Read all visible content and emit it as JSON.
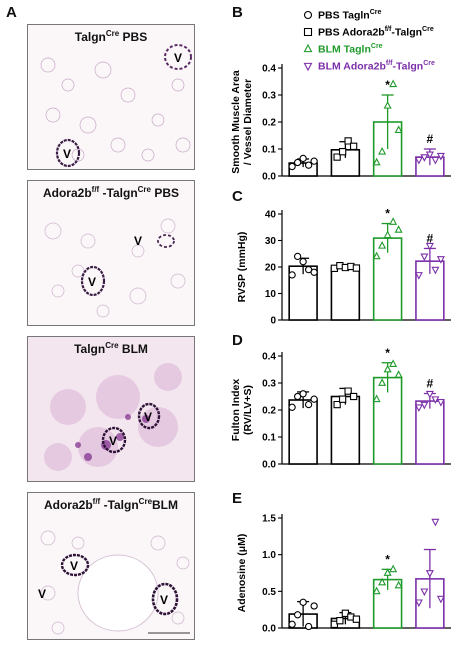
{
  "panels": {
    "A": "A",
    "B": "B",
    "C": "C",
    "D": "D",
    "E": "E"
  },
  "micrographs": [
    {
      "label_main": "Talgn",
      "label_sup": "Cre",
      "label_tail": " PBS",
      "vessels": [
        "V",
        "V"
      ]
    },
    {
      "label_main": "Adora2b",
      "label_sup": "f/f",
      "label_tail": " -Talgn",
      "label_sup2": "Cre",
      "label_tail2": " PBS",
      "vessels": [
        "V",
        "V"
      ]
    },
    {
      "label_main": "Talgn",
      "label_sup": "Cre",
      "label_tail": " BLM",
      "vessels": [
        "V",
        "V"
      ]
    },
    {
      "label_main": "Adora2b",
      "label_sup": "f/f",
      "label_tail": " -Talgn",
      "label_sup2": "Cre",
      "label_tail2": "BLM",
      "vessels": [
        "V",
        "V",
        "V"
      ]
    }
  ],
  "legend": [
    {
      "main": "PBS Tagln",
      "sup": "Cre",
      "main2": "",
      "sup2": "",
      "color": "#000000",
      "marker": "circle"
    },
    {
      "main": "PBS Adora2b",
      "sup": "f/f",
      "main2": "-Talgn",
      "sup2": "Cre",
      "color": "#000000",
      "marker": "square"
    },
    {
      "main": "BLM Tagln",
      "sup": "Cre",
      "main2": "",
      "sup2": "",
      "color": "#1e9a2a",
      "marker": "triangle-up"
    },
    {
      "main": "BLM Adora2b",
      "sup": "f/f",
      "main2": "-Talgn",
      "sup2": "Cre",
      "color": "#7b2fa8",
      "marker": "triangle-down"
    }
  ],
  "colors": {
    "group1": "#000000",
    "group2": "#000000",
    "group3": "#1e9a2a",
    "group4": "#7b2fa8"
  },
  "chart_data": [
    {
      "type": "bar",
      "panel": "B",
      "ylabel_lines": [
        "Smooth Muscle Area",
        "/ Vessel Diameter"
      ],
      "ylim": [
        0,
        0.4
      ],
      "yticks": [
        0.0,
        0.1,
        0.2,
        0.3,
        0.4
      ],
      "ytick_labels": [
        "0.0",
        "0.1",
        "0.2",
        "0.3",
        "0.4"
      ],
      "values": [
        0.048,
        0.097,
        0.2,
        0.07
      ],
      "errors": [
        0.015,
        0.03,
        0.1,
        0.03
      ],
      "points": [
        [
          0.035,
          0.05,
          0.065,
          0.04,
          0.055
        ],
        [
          0.07,
          0.09,
          0.13,
          0.11
        ],
        [
          0.05,
          0.09,
          0.26,
          0.34,
          0.17
        ],
        [
          0.06,
          0.07,
          0.08,
          0.06,
          0.075
        ]
      ],
      "annotations": [
        {
          "bar": 2,
          "text": "*"
        },
        {
          "bar": 3,
          "text": "#"
        }
      ]
    },
    {
      "type": "bar",
      "panel": "C",
      "ylabel_lines": [
        "RVSP (mmHg)"
      ],
      "ylim": [
        0,
        40
      ],
      "yticks": [
        0,
        10,
        20,
        30,
        40
      ],
      "ytick_labels": [
        "0",
        "10",
        "20",
        "30",
        "40"
      ],
      "values": [
        20.3,
        19.9,
        30.9,
        22.2
      ],
      "errors": [
        3.0,
        0.8,
        5.5,
        4.8
      ],
      "points": [
        [
          17,
          24,
          22,
          19,
          18
        ],
        [
          19.5,
          20.5,
          19.8,
          20.2,
          19.6
        ],
        [
          24,
          28,
          32,
          37,
          34
        ],
        [
          17,
          24,
          28,
          19,
          23
        ]
      ],
      "annotations": [
        {
          "bar": 2,
          "text": "*"
        },
        {
          "bar": 3,
          "text": "#"
        }
      ]
    },
    {
      "type": "bar",
      "panel": "D",
      "ylabel_lines": [
        "Fulton Index",
        "(RV/LV+S)"
      ],
      "ylim": [
        0,
        0.4
      ],
      "yticks": [
        0.0,
        0.1,
        0.2,
        0.3,
        0.4
      ],
      "ytick_labels": [
        "0.0",
        "0.1",
        "0.2",
        "0.3",
        "0.4"
      ],
      "values": [
        0.237,
        0.25,
        0.32,
        0.233
      ],
      "errors": [
        0.03,
        0.03,
        0.055,
        0.028
      ],
      "points": [
        [
          0.21,
          0.25,
          0.26,
          0.22,
          0.24
        ],
        [
          0.22,
          0.24,
          0.27,
          0.25
        ],
        [
          0.24,
          0.3,
          0.35,
          0.37,
          0.33
        ],
        [
          0.21,
          0.22,
          0.26,
          0.24,
          0.23
        ]
      ],
      "annotations": [
        {
          "bar": 2,
          "text": "*"
        },
        {
          "bar": 3,
          "text": "#"
        }
      ]
    },
    {
      "type": "bar",
      "panel": "E",
      "ylabel_lines": [
        "Adenosine (μM)"
      ],
      "ylim": [
        0,
        1.5
      ],
      "yticks": [
        0.0,
        0.5,
        1.0,
        1.5
      ],
      "ytick_labels": [
        "0.0",
        "0.5",
        "1.0",
        "1.5"
      ],
      "values": [
        0.19,
        0.13,
        0.66,
        0.67
      ],
      "errors": [
        0.17,
        0.08,
        0.14,
        0.4
      ],
      "points": [
        [
          0.05,
          0.18,
          0.35,
          0.02,
          0.3
        ],
        [
          0.05,
          0.1,
          0.2,
          0.15,
          0.12
        ],
        [
          0.5,
          0.62,
          0.75,
          0.8,
          0.58
        ],
        [
          0.35,
          0.5,
          0.75,
          1.45,
          0.4
        ]
      ],
      "annotations": [
        {
          "bar": 2,
          "text": "*"
        }
      ]
    }
  ]
}
